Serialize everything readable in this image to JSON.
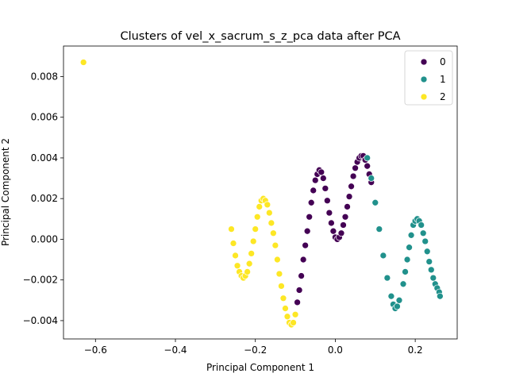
{
  "chart_data": {
    "type": "scatter",
    "title": "Clusters of vel_x_sacrum_s_z_pca data after PCA",
    "xlabel": "Principal Component 1",
    "ylabel": "Principal Component 2",
    "xlim": [
      -0.68,
      0.305
    ],
    "ylim": [
      -0.0049,
      0.0095
    ],
    "xticks": [
      -0.6,
      -0.4,
      -0.2,
      0.0,
      0.2
    ],
    "xtick_labels": [
      "−0.6",
      "−0.4",
      "−0.2",
      "0.0",
      "0.2"
    ],
    "yticks": [
      -0.004,
      -0.002,
      0.0,
      0.002,
      0.004,
      0.006,
      0.008
    ],
    "ytick_labels": [
      "−0.004",
      "−0.002",
      "0.000",
      "0.002",
      "0.004",
      "0.006",
      "0.008"
    ],
    "grid": false,
    "legend": {
      "placement": "top-right",
      "entries": [
        {
          "label": "0",
          "color": "#440154"
        },
        {
          "label": "1",
          "color": "#21918c"
        },
        {
          "label": "2",
          "color": "#fde725"
        }
      ]
    },
    "series": [
      {
        "name": "0",
        "color": "#440154",
        "x": [
          -0.1,
          -0.095,
          -0.09,
          -0.085,
          -0.08,
          -0.075,
          -0.07,
          -0.065,
          -0.06,
          -0.055,
          -0.05,
          -0.045,
          -0.04,
          -0.035,
          -0.03,
          -0.025,
          -0.02,
          -0.015,
          -0.01,
          -0.005,
          0.0,
          0.005,
          0.01,
          0.015,
          0.02,
          0.025,
          0.03,
          0.035,
          0.04,
          0.045,
          0.05,
          0.055,
          0.06,
          0.065,
          0.07,
          0.075,
          0.08,
          0.085,
          0.09
        ],
        "y": [
          -0.0037,
          -0.0031,
          -0.0025,
          -0.0018,
          -0.001,
          -0.0003,
          0.0004,
          0.0011,
          0.0018,
          0.0024,
          0.0029,
          0.0032,
          0.0034,
          0.0033,
          0.003,
          0.0025,
          0.0019,
          0.0013,
          0.0008,
          0.0004,
          0.0001,
          0.0,
          0.0001,
          0.0003,
          0.0007,
          0.0011,
          0.0016,
          0.0021,
          0.0026,
          0.0031,
          0.0035,
          0.0038,
          0.004,
          0.0041,
          0.0041,
          0.0039,
          0.0036,
          0.0032,
          0.0028
        ]
      },
      {
        "name": "1",
        "color": "#21918c",
        "x": [
          0.08,
          0.09,
          0.1,
          0.11,
          0.12,
          0.13,
          0.14,
          0.145,
          0.15,
          0.155,
          0.16,
          0.17,
          0.175,
          0.18,
          0.185,
          0.19,
          0.195,
          0.2,
          0.205,
          0.21,
          0.215,
          0.22,
          0.225,
          0.23,
          0.235,
          0.24,
          0.245,
          0.25,
          0.255,
          0.26,
          0.262
        ],
        "y": [
          0.004,
          0.003,
          0.0018,
          0.0005,
          -0.0008,
          -0.0019,
          -0.0028,
          -0.0032,
          -0.0034,
          -0.0033,
          -0.003,
          -0.0022,
          -0.0016,
          -0.001,
          -0.0004,
          0.0002,
          0.0007,
          0.0009,
          0.001,
          0.0009,
          0.0007,
          0.0003,
          -0.0001,
          -0.0006,
          -0.0011,
          -0.0015,
          -0.0019,
          -0.0022,
          -0.0024,
          -0.0026,
          -0.0028
        ]
      },
      {
        "name": "2",
        "color": "#fde725",
        "x": [
          -0.63,
          -0.26,
          -0.255,
          -0.25,
          -0.245,
          -0.24,
          -0.235,
          -0.23,
          -0.225,
          -0.22,
          -0.215,
          -0.21,
          -0.205,
          -0.2,
          -0.195,
          -0.19,
          -0.185,
          -0.18,
          -0.175,
          -0.17,
          -0.165,
          -0.16,
          -0.155,
          -0.15,
          -0.145,
          -0.14,
          -0.135,
          -0.13,
          -0.125,
          -0.12,
          -0.115,
          -0.11,
          -0.105,
          -0.1
        ],
        "y": [
          0.0087,
          0.0005,
          -0.0002,
          -0.0008,
          -0.0013,
          -0.0016,
          -0.0018,
          -0.0019,
          -0.0018,
          -0.0016,
          -0.0012,
          -0.0007,
          -0.0001,
          0.0005,
          0.0011,
          0.0016,
          0.0019,
          0.002,
          0.0019,
          0.0017,
          0.0013,
          0.0008,
          0.0003,
          -0.0003,
          -0.001,
          -0.0017,
          -0.0023,
          -0.0029,
          -0.0034,
          -0.0038,
          -0.0041,
          -0.0042,
          -0.0041,
          -0.0037
        ]
      }
    ]
  }
}
